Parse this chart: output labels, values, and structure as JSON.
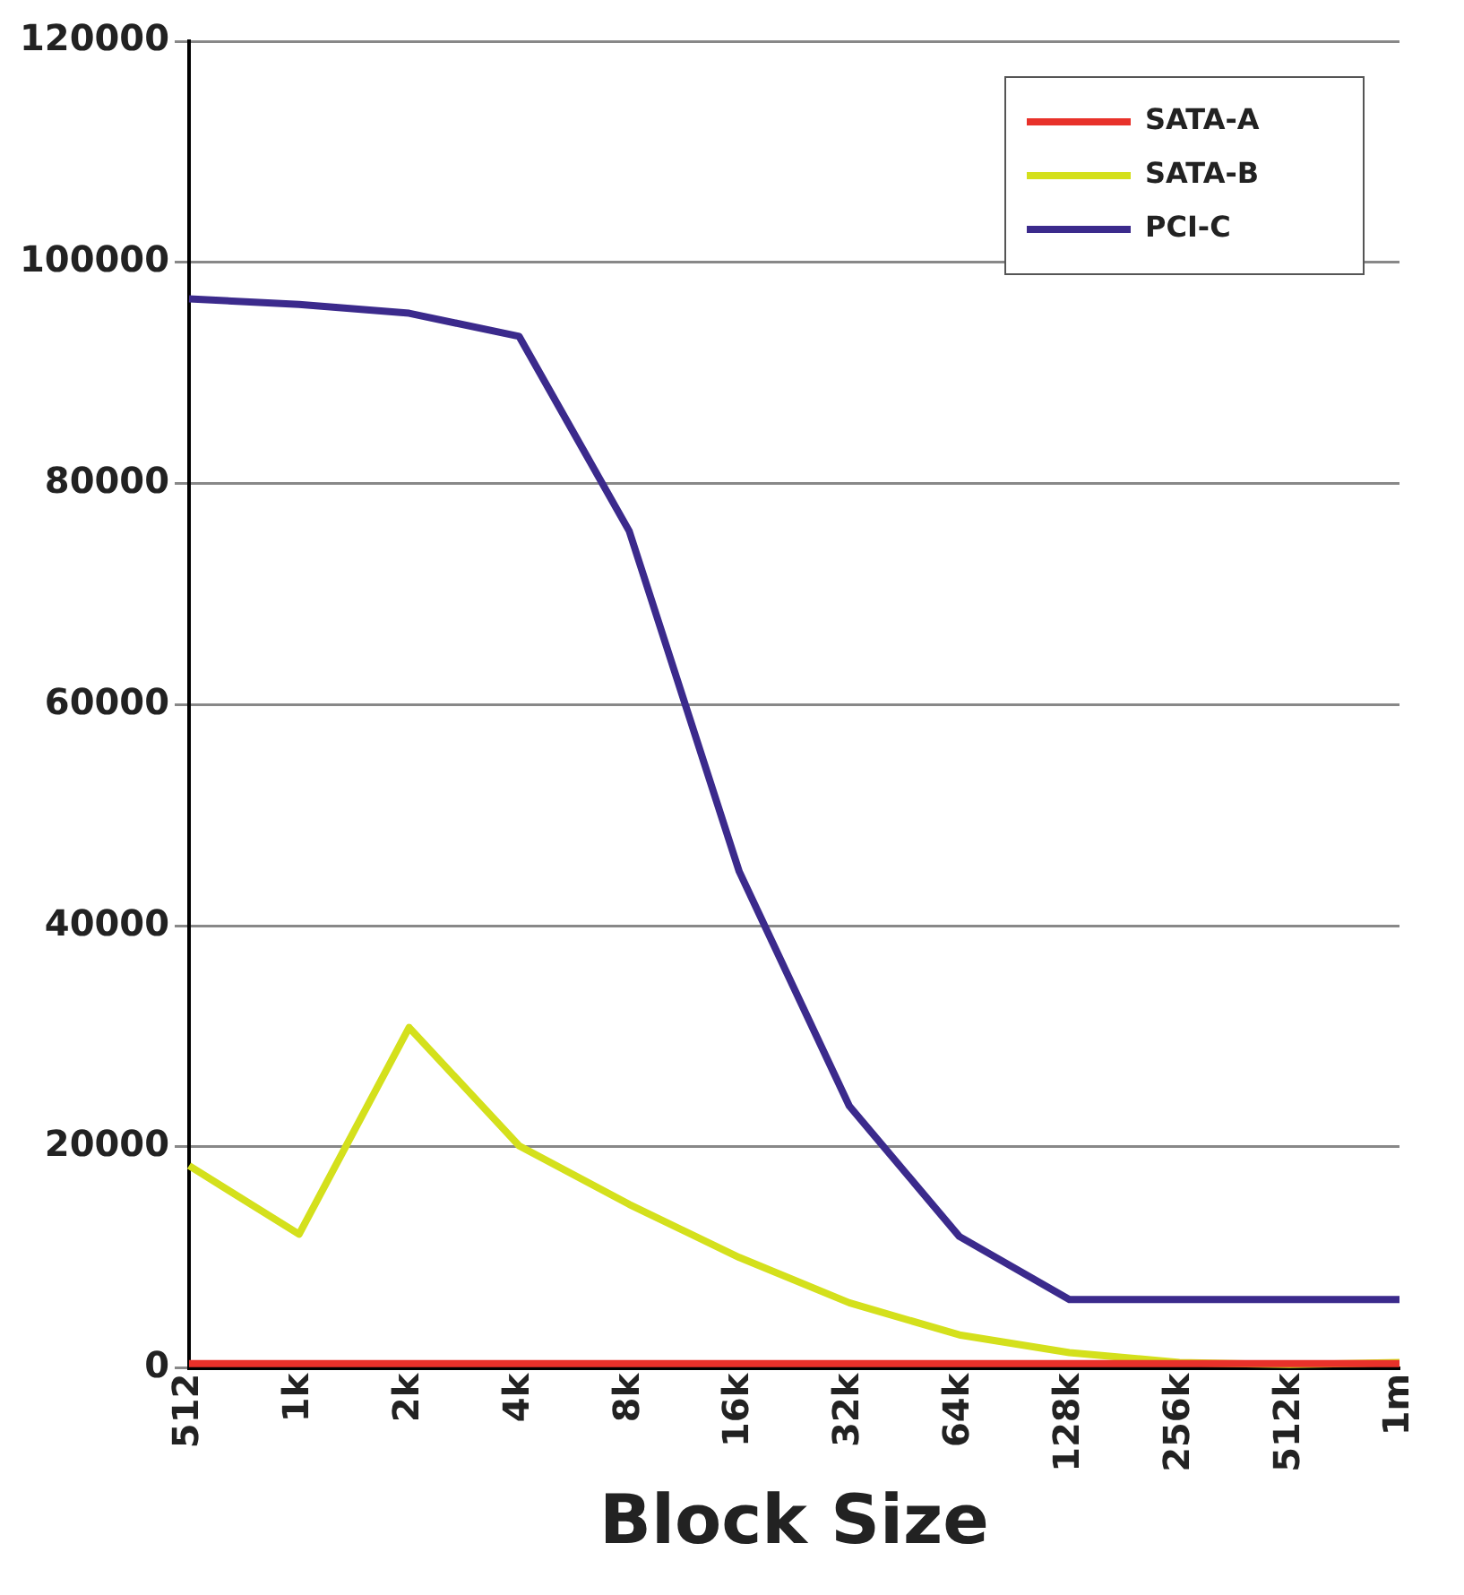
{
  "chart_data": {
    "type": "line",
    "xlabel": "Block Size",
    "categories": [
      "512",
      "1k",
      "2k",
      "4k",
      "8k",
      "16k",
      "32k",
      "64k",
      "128k",
      "256k",
      "512k",
      "1m"
    ],
    "series": [
      {
        "name": "SATA-A",
        "color": "#e8312a",
        "values": [
          400,
          400,
          400,
          400,
          400,
          400,
          400,
          400,
          400,
          400,
          400,
          400
        ]
      },
      {
        "name": "SATA-B",
        "color": "#d4e01c",
        "values": [
          18300,
          12100,
          30800,
          20100,
          14800,
          10000,
          5900,
          3000,
          1400,
          500,
          300,
          500
        ]
      },
      {
        "name": "PCI-C",
        "color": "#3b2a8c",
        "values": [
          96700,
          96200,
          95400,
          93300,
          75700,
          44900,
          23700,
          11900,
          6200,
          6200,
          6200,
          6200
        ]
      }
    ],
    "ylim": [
      0,
      120000
    ],
    "yticks": [
      0,
      20000,
      40000,
      60000,
      80000,
      100000,
      120000
    ],
    "grid": "y",
    "legend": "top right",
    "marker": "none",
    "line_style": "solid"
  }
}
